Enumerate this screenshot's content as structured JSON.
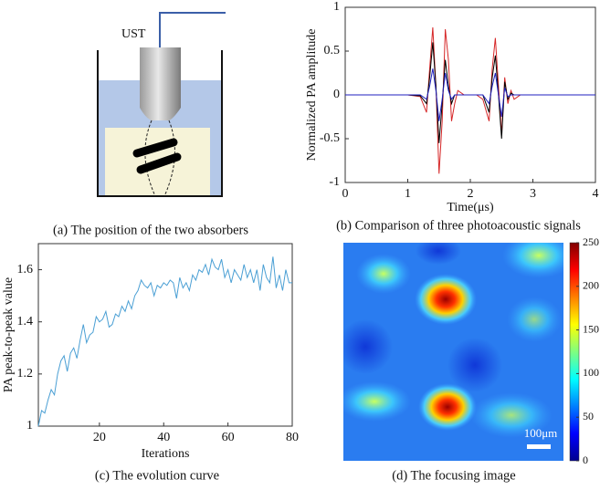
{
  "figure": {
    "diagram_label": "UST",
    "captions": [
      "(a) The position of the two absorbers",
      "(b) Comparison of three photoacoustic signals",
      "(c) The evolution curve",
      "(d) The focusing image"
    ],
    "scale_bar": "100μm"
  },
  "chart_data": [
    {
      "type": "line",
      "xlabel": "Time(μs)",
      "ylabel": "Normalized PA amplitude",
      "x": [
        0,
        0.5,
        1.0,
        1.2,
        1.3,
        1.35,
        1.4,
        1.45,
        1.5,
        1.55,
        1.6,
        1.65,
        1.7,
        1.75,
        1.8,
        1.9,
        2.0,
        2.1,
        2.2,
        2.3,
        2.35,
        2.4,
        2.45,
        2.5,
        2.55,
        2.6,
        2.65,
        2.7,
        2.8,
        3.0,
        3.5,
        4.0
      ],
      "series": [
        {
          "color": "#d62728",
          "values": [
            0,
            0,
            0,
            -0.02,
            -0.2,
            0.3,
            0.77,
            0.1,
            -0.9,
            -0.3,
            0.75,
            0.4,
            -0.3,
            -0.1,
            0.05,
            0,
            0,
            0,
            -0.05,
            -0.3,
            0.3,
            0.65,
            0.1,
            -0.45,
            0.2,
            -0.1,
            0.05,
            -0.05,
            0,
            0,
            0,
            0
          ]
        },
        {
          "color": "#000000",
          "values": [
            0,
            0,
            0,
            -0.01,
            -0.1,
            0.2,
            0.6,
            0.1,
            -0.55,
            -0.1,
            0.4,
            0.1,
            -0.1,
            0,
            0,
            0,
            0,
            0,
            0,
            -0.2,
            0.2,
            0.45,
            0,
            -0.5,
            0.15,
            -0.05,
            0.02,
            0,
            0,
            0,
            0,
            0
          ]
        },
        {
          "color": "#1f1fbf",
          "values": [
            0,
            0,
            0,
            0,
            -0.05,
            0.1,
            0.3,
            0.05,
            -0.3,
            -0.05,
            0.25,
            0.05,
            -0.05,
            0,
            0,
            0,
            0,
            0,
            0,
            -0.1,
            0.1,
            0.25,
            0,
            -0.25,
            0.08,
            -0.02,
            0,
            0,
            0,
            0,
            0,
            0
          ]
        }
      ],
      "xlim": [
        0,
        4
      ],
      "xticks": [
        0,
        1,
        2,
        3,
        4
      ],
      "ylim": [
        -1,
        1
      ],
      "yticks": [
        -1,
        -0.5,
        0,
        0.5,
        1
      ]
    },
    {
      "type": "line",
      "xlabel": "Iterations",
      "ylabel": "PA peak-to-peak value",
      "color": "#4a9fd4",
      "x": [
        1,
        2,
        3,
        4,
        5,
        6,
        7,
        8,
        9,
        10,
        11,
        12,
        13,
        14,
        15,
        16,
        17,
        18,
        19,
        20,
        21,
        22,
        23,
        24,
        25,
        26,
        27,
        28,
        29,
        30,
        31,
        32,
        33,
        34,
        35,
        36,
        37,
        38,
        39,
        40,
        41,
        42,
        43,
        44,
        45,
        46,
        47,
        48,
        49,
        50,
        51,
        52,
        53,
        54,
        55,
        56,
        57,
        58,
        59,
        60,
        61,
        62,
        63,
        64,
        65,
        66,
        67,
        68,
        69,
        70,
        71,
        72,
        73,
        74,
        75,
        76,
        77,
        78,
        79,
        80
      ],
      "values": [
        1.0,
        1.06,
        1.05,
        1.1,
        1.14,
        1.12,
        1.2,
        1.25,
        1.27,
        1.21,
        1.28,
        1.3,
        1.26,
        1.33,
        1.39,
        1.32,
        1.35,
        1.36,
        1.42,
        1.4,
        1.41,
        1.44,
        1.38,
        1.39,
        1.43,
        1.42,
        1.46,
        1.44,
        1.48,
        1.45,
        1.5,
        1.52,
        1.56,
        1.54,
        1.53,
        1.55,
        1.5,
        1.54,
        1.53,
        1.55,
        1.54,
        1.56,
        1.55,
        1.49,
        1.57,
        1.53,
        1.55,
        1.52,
        1.58,
        1.56,
        1.6,
        1.59,
        1.62,
        1.58,
        1.64,
        1.61,
        1.6,
        1.64,
        1.57,
        1.6,
        1.55,
        1.6,
        1.58,
        1.56,
        1.62,
        1.57,
        1.6,
        1.55,
        1.6,
        1.52,
        1.62,
        1.57,
        1.55,
        1.65,
        1.53,
        1.58,
        1.52,
        1.6,
        1.55,
        1.55
      ],
      "xlim": [
        1,
        80
      ],
      "xticks": [
        20,
        40,
        60,
        80
      ],
      "ylim": [
        1,
        1.7
      ],
      "yticks": [
        1,
        1.2,
        1.4,
        1.6
      ]
    },
    {
      "type": "heatmap",
      "clim": [
        0,
        250
      ],
      "cticks": [
        0,
        50,
        100,
        150,
        200,
        250
      ]
    }
  ]
}
